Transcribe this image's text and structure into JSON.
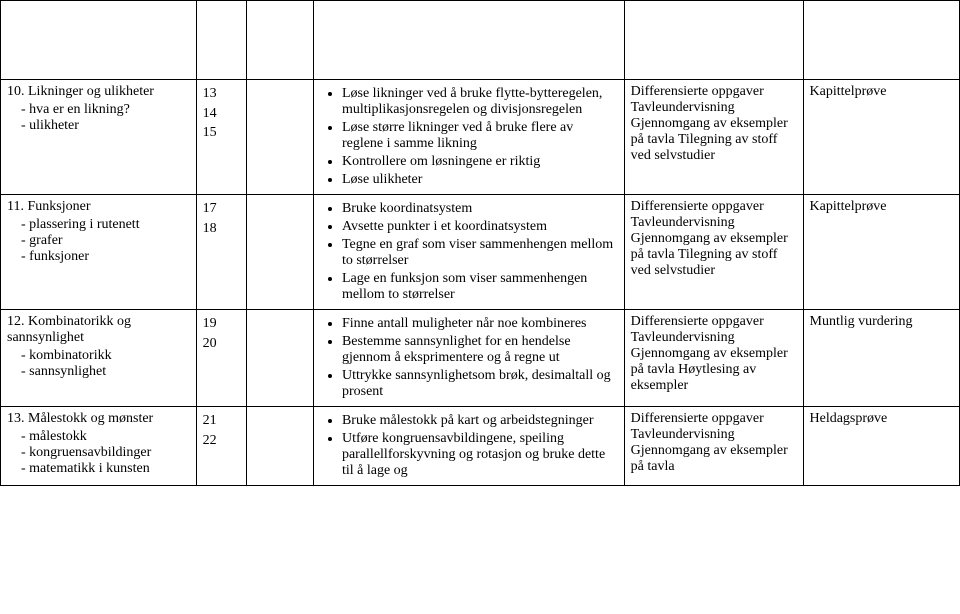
{
  "rows": [
    {
      "topic_title": "10. Likninger og ulikheter",
      "topic_items": [
        "hva er en likning?",
        "ulikheter"
      ],
      "weeks": [
        "13",
        "14",
        "15"
      ],
      "goals": [
        "Løse likninger ved å bruke flytte-bytteregelen, multiplikasjonsregelen og divisjonsregelen",
        "Løse større likninger ved å bruke flere av reglene i samme likning",
        "Kontrollere om løsningene er riktig",
        "Løse ulikheter"
      ],
      "methods": "Differensierte oppgaver Tavleundervisning Gjennomgang av eksempler på tavla Tilegning av stoff ved selvstudier",
      "assessment": "Kapittelprøve"
    },
    {
      "topic_title": "11. Funksjoner",
      "topic_items": [
        "plassering i rutenett",
        "grafer",
        "funksjoner"
      ],
      "weeks": [
        "17",
        "18"
      ],
      "goals": [
        "Bruke koordinatsystem",
        "Avsette punkter i et koordinatsystem",
        "Tegne en graf som viser sammenhengen mellom to størrelser",
        "Lage en funksjon som viser sammenhengen mellom to størrelser"
      ],
      "methods": "Differensierte oppgaver Tavleundervisning Gjennomgang av eksempler på tavla Tilegning av stoff ved selvstudier",
      "assessment": "Kapittelprøve"
    },
    {
      "topic_title": "12. Kombinatorikk og sannsynlighet",
      "topic_items": [
        "kombinatorikk",
        "sannsynlighet"
      ],
      "weeks": [
        "19",
        "20"
      ],
      "goals": [
        "Finne antall muligheter når noe kombineres",
        "Bestemme sannsynlighet for en hendelse gjennom å eksprimentere og å regne ut",
        "Uttrykke sannsynlighetsom brøk, desimaltall og prosent"
      ],
      "methods": "Differensierte oppgaver Tavleundervisning Gjennomgang av eksempler på tavla Høytlesing av eksempler",
      "assessment": "Muntlig vurdering"
    },
    {
      "topic_title": "13. Målestokk og mønster",
      "topic_items": [
        "målestokk",
        "kongruensavbildinger",
        "matematikk i kunsten"
      ],
      "weeks": [
        "21",
        "22"
      ],
      "goals": [
        "Bruke målestokk på kart og arbeidstegninger",
        "Utføre kongruensavbildingene, speiling parallellforskyvning og rotasjon og bruke dette til å lage og"
      ],
      "methods": "Differensierte oppgaver Tavleundervisning Gjennomgang av eksempler på tavla",
      "assessment": "Heldagsprøve"
    }
  ]
}
